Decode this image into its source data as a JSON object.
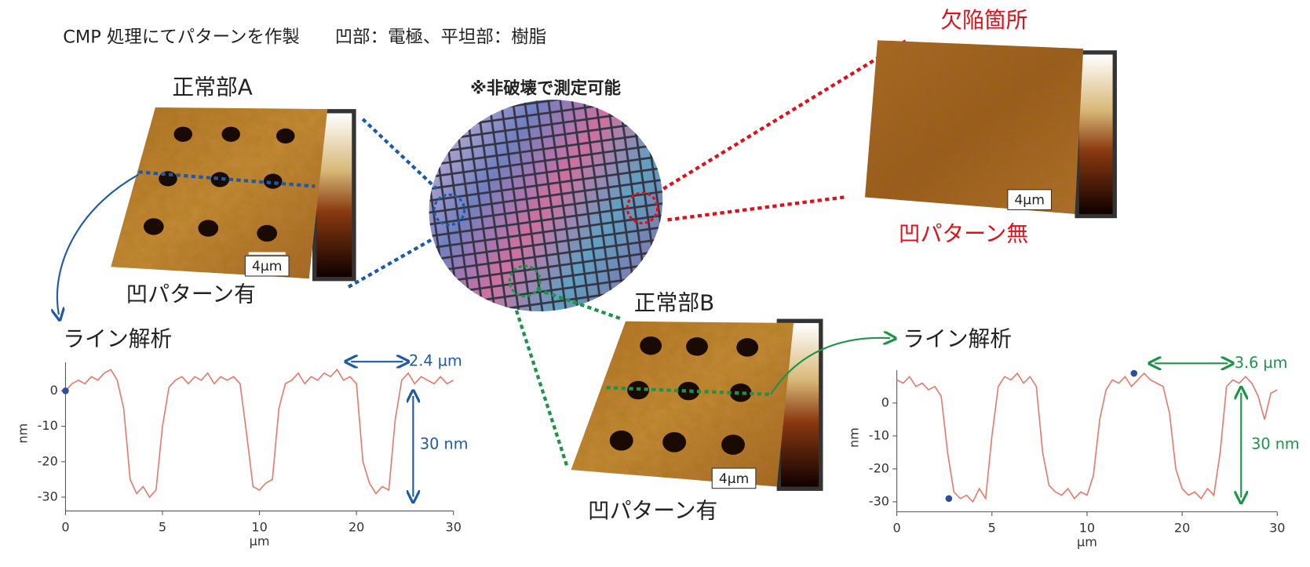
{
  "header": "CMP 処理にてパターンを作製　　凹部：電極、平坦部：樹脂",
  "wafer_note": "※非破壊で測定可能",
  "afm_images": [
    {
      "title": "正常部A",
      "caption": "凹パターン有",
      "scale": "4µm"
    },
    {
      "title": "欠陥箇所",
      "caption": "凹パターン無",
      "scale": "4µm"
    },
    {
      "title": "正常部B",
      "caption": "凹パターン有",
      "scale": "4µm"
    }
  ],
  "chart_data": [
    {
      "type": "line",
      "title": "ライン解析",
      "xlabel": "µm",
      "ylabel": "nm",
      "x": [
        0,
        0.5,
        1,
        1.5,
        2,
        2.5,
        3,
        3.5,
        4,
        4.5,
        5,
        5.5,
        6,
        6.5,
        7,
        7.5,
        8,
        8.5,
        9,
        9.5,
        10,
        10.5,
        11,
        11.5,
        12,
        12.5,
        13,
        13.5,
        14,
        14.5,
        15,
        15.5,
        16,
        16.5,
        17,
        17.5,
        18,
        18.5,
        19,
        19.5,
        20,
        20.5,
        21,
        21.5,
        22,
        22.5,
        23,
        23.5,
        24,
        24.5,
        25,
        25.5,
        26,
        26.5,
        27,
        27.5,
        28,
        28.5,
        29,
        29.5,
        30
      ],
      "series": [
        {
          "color": "#e8776a",
          "values": [
            0,
            2,
            3,
            2,
            4,
            3,
            5,
            6,
            3,
            -5,
            -25,
            -29,
            -27,
            -30,
            -28,
            -10,
            1,
            3,
            4,
            2,
            4,
            3,
            5,
            2,
            4,
            3,
            4,
            2,
            -12,
            -27,
            -28,
            -26,
            -25,
            -5,
            2,
            3,
            5,
            2,
            4,
            3,
            5,
            4,
            6,
            3,
            4,
            2,
            -20,
            -26,
            -29,
            -27,
            -28,
            -8,
            3,
            5,
            2,
            4,
            3,
            2,
            4,
            2,
            3
          ]
        }
      ],
      "points": {
        "color": "#2a4fa0",
        "x": [
          0
        ],
        "y": [
          0
        ]
      },
      "xlim": [
        0,
        30
      ],
      "ylim": [
        -32,
        8
      ],
      "xticks": [
        0,
        {
          "value": 7.5,
          "label": "5"
        },
        {
          "value": 15,
          "label": "10"
        },
        {
          "value": 22.5,
          "label": "20"
        },
        30
      ],
      "yticks": [
        0,
        -10,
        -20,
        -30
      ],
      "annotation_color": "#1f5aa6",
      "annotations": [
        "2.4 µm",
        "30 nm"
      ]
    },
    {
      "type": "line",
      "title": "ライン解析",
      "xlabel": "µm",
      "ylabel": "nm",
      "x": [
        0,
        0.5,
        1,
        1.5,
        2,
        2.5,
        3,
        3.5,
        4,
        4.5,
        5,
        5.5,
        6,
        6.5,
        7,
        7.5,
        8,
        8.5,
        9,
        9.5,
        10,
        10.5,
        11,
        11.5,
        12,
        12.5,
        13,
        13.5,
        14,
        14.5,
        15,
        15.5,
        16,
        16.5,
        17,
        17.5,
        18,
        18.5,
        19,
        19.5,
        20,
        20.5,
        21,
        21.5,
        22,
        22.5,
        23,
        23.5,
        24,
        24.5,
        25,
        25.5,
        26,
        26.5,
        27,
        27.5,
        28,
        28.5,
        29,
        29.5,
        30
      ],
      "series": [
        {
          "color": "#e8776a",
          "values": [
            7,
            6,
            8,
            5,
            6,
            4,
            5,
            2,
            -15,
            -27,
            -29,
            -28,
            -30,
            -26,
            -29,
            -10,
            5,
            8,
            7,
            9,
            6,
            8,
            5,
            -15,
            -25,
            -27,
            -28,
            -26,
            -29,
            -27,
            -28,
            -22,
            -5,
            4,
            7,
            6,
            8,
            5,
            7,
            9,
            7,
            6,
            5,
            -3,
            -20,
            -26,
            -28,
            -27,
            -29,
            -26,
            -28,
            -15,
            5,
            7,
            6,
            8,
            6,
            2,
            -5,
            3,
            4
          ]
        }
      ],
      "points": {
        "color": "#2a4fa0",
        "x": [
          4.1,
          18.7
        ],
        "y": [
          -29,
          9
        ]
      },
      "xlim": [
        0,
        30
      ],
      "ylim": [
        -31,
        10
      ],
      "xticks": [
        0,
        {
          "value": 7.5,
          "label": "5"
        },
        {
          "value": 15,
          "label": "10"
        },
        {
          "value": 22.5,
          "label": "20"
        },
        30
      ],
      "yticks": [
        0,
        -10,
        -20,
        -30
      ],
      "annotation_color": "#1e9448",
      "annotations": [
        "3.6 µm",
        "30 nm"
      ]
    }
  ]
}
